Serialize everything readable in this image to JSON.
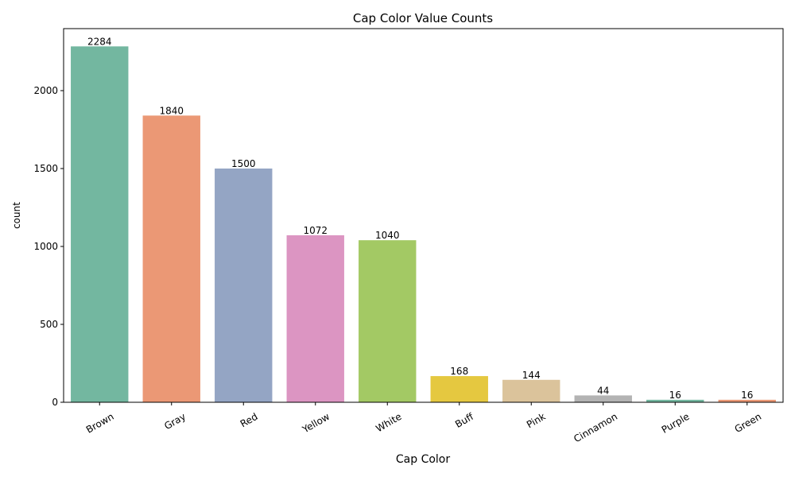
{
  "chart_data": {
    "type": "bar",
    "title": "Cap Color Value Counts",
    "xlabel": "Cap Color",
    "ylabel": "count",
    "categories": [
      "Brown",
      "Gray",
      "Red",
      "Yellow",
      "White",
      "Buff",
      "Pink",
      "Cinnamon",
      "Purple",
      "Green"
    ],
    "values": [
      2284,
      1840,
      1500,
      1072,
      1040,
      168,
      144,
      44,
      16,
      16
    ],
    "colors": [
      "#73b7a0",
      "#eb9875",
      "#94a5c4",
      "#dc95c2",
      "#a3c964",
      "#e5c840",
      "#dbc39b",
      "#b3b3b3",
      "#73b7a0",
      "#eb9875"
    ],
    "ylim": [
      0,
      2398
    ],
    "yticks": [
      0,
      500,
      1000,
      1500,
      2000
    ],
    "grid": false,
    "xtick_rotation": 30
  }
}
